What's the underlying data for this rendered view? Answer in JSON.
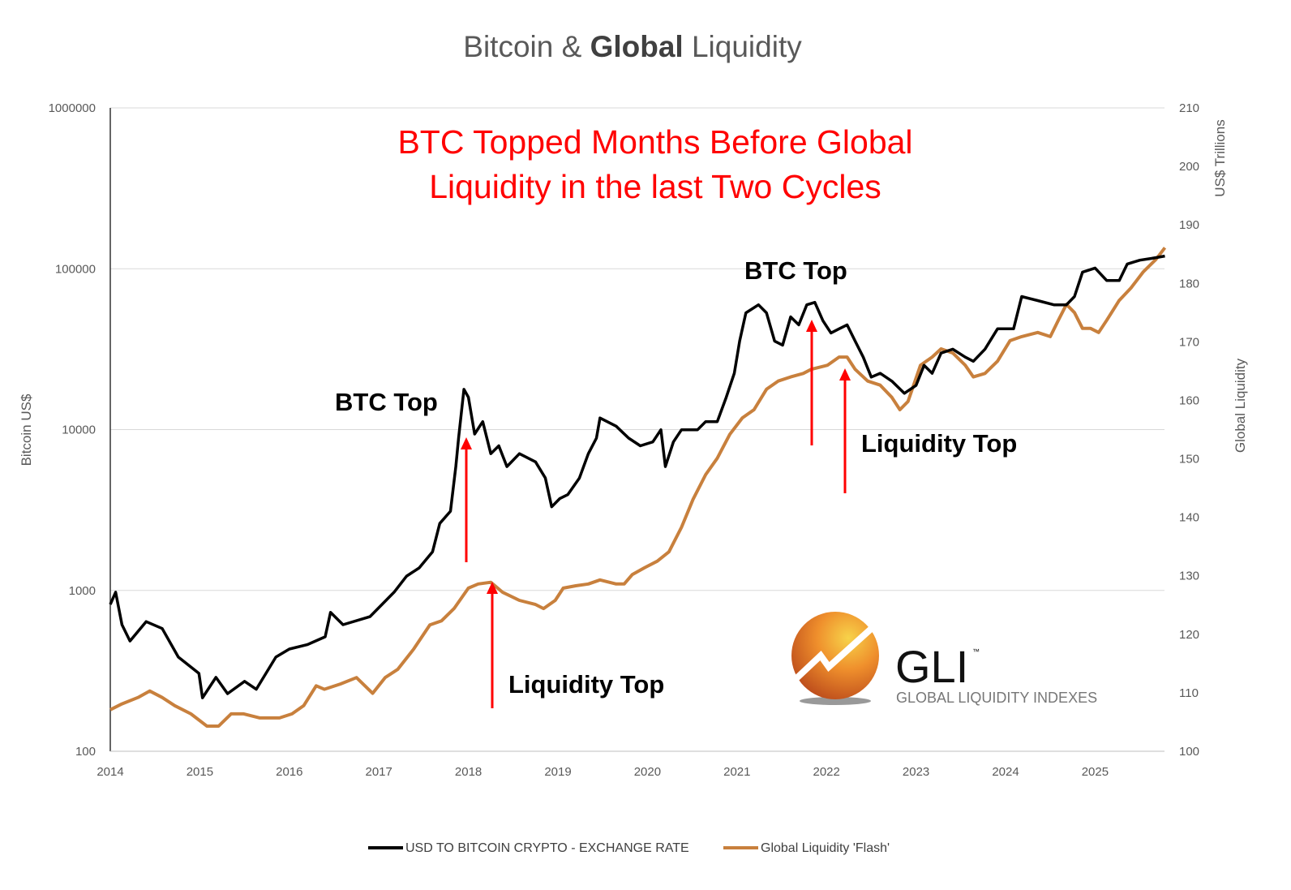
{
  "chart_data": {
    "type": "line",
    "title": {
      "prefix": "Bitcoin & ",
      "bold": "Global",
      "suffix": " Liquidity"
    },
    "headline": [
      "BTC Topped Months Before Global",
      "Liquidity in the last Two Cycles"
    ],
    "xlabel": "",
    "x_ticks": [
      "2014",
      "2015",
      "2016",
      "2017",
      "2018",
      "2019",
      "2020",
      "2021",
      "2022",
      "2023",
      "2024",
      "2025"
    ],
    "xlim": [
      2014,
      2025.8
    ],
    "y_left": {
      "label": "Bitcoin US$",
      "scale": "log",
      "range": [
        100,
        1000000
      ],
      "ticks": [
        "100",
        "1000",
        "10000",
        "100000",
        "1000000"
      ]
    },
    "y_right": {
      "label": "Global Liquidity",
      "unit_label": "US$ Trillions",
      "scale": "linear",
      "range": [
        100,
        210
      ],
      "ticks": [
        "100",
        "110",
        "120",
        "130",
        "140",
        "150",
        "160",
        "170",
        "180",
        "190",
        "200",
        "210"
      ]
    },
    "grid": true,
    "legend_position": "bottom",
    "series": [
      {
        "name": "USD TO BITCOIN CRYPTO - EXCHANGE RATE",
        "axis": "left",
        "color": "#000000",
        "points": [
          [
            2014.0,
            818
          ],
          [
            2014.06,
            975
          ],
          [
            2014.13,
            612
          ],
          [
            2014.22,
            485
          ],
          [
            2014.4,
            640
          ],
          [
            2014.58,
            580
          ],
          [
            2014.76,
            385
          ],
          [
            2014.99,
            305
          ],
          [
            2015.03,
            215
          ],
          [
            2015.18,
            288
          ],
          [
            2015.31,
            228
          ],
          [
            2015.5,
            272
          ],
          [
            2015.63,
            243
          ],
          [
            2015.85,
            385
          ],
          [
            2016.0,
            432
          ],
          [
            2016.2,
            460
          ],
          [
            2016.4,
            515
          ],
          [
            2016.46,
            730
          ],
          [
            2016.6,
            612
          ],
          [
            2016.9,
            687
          ],
          [
            2017.17,
            975
          ],
          [
            2017.31,
            1228
          ],
          [
            2017.45,
            1380
          ],
          [
            2017.6,
            1740
          ],
          [
            2017.68,
            2610
          ],
          [
            2017.8,
            3110
          ],
          [
            2017.86,
            5890
          ],
          [
            2017.89,
            8850
          ],
          [
            2017.95,
            17800
          ],
          [
            2018.0,
            15900
          ],
          [
            2018.07,
            9380
          ],
          [
            2018.16,
            11200
          ],
          [
            2018.25,
            7080
          ],
          [
            2018.34,
            7930
          ],
          [
            2018.43,
            5890
          ],
          [
            2018.57,
            7080
          ],
          [
            2018.75,
            6300
          ],
          [
            2018.86,
            5000
          ],
          [
            2018.93,
            3310
          ],
          [
            2019.02,
            3720
          ],
          [
            2019.11,
            3940
          ],
          [
            2019.24,
            5000
          ],
          [
            2019.34,
            7080
          ],
          [
            2019.43,
            8850
          ],
          [
            2019.47,
            11800
          ],
          [
            2019.65,
            10500
          ],
          [
            2019.79,
            8850
          ],
          [
            2019.92,
            7930
          ],
          [
            2020.06,
            8380
          ],
          [
            2020.15,
            9980
          ],
          [
            2020.2,
            5890
          ],
          [
            2020.29,
            8380
          ],
          [
            2020.38,
            9980
          ],
          [
            2020.56,
            9980
          ],
          [
            2020.65,
            11200
          ],
          [
            2020.78,
            11200
          ],
          [
            2020.88,
            15900
          ],
          [
            2020.97,
            22400
          ],
          [
            2021.03,
            35500
          ],
          [
            2021.1,
            53200
          ],
          [
            2021.24,
            59700
          ],
          [
            2021.33,
            53200
          ],
          [
            2021.42,
            35500
          ],
          [
            2021.51,
            33500
          ],
          [
            2021.6,
            50200
          ],
          [
            2021.69,
            44800
          ],
          [
            2021.78,
            59700
          ],
          [
            2021.87,
            61800
          ],
          [
            2021.96,
            47500
          ],
          [
            2022.05,
            39900
          ],
          [
            2022.14,
            42300
          ],
          [
            2022.23,
            44800
          ],
          [
            2022.32,
            35500
          ],
          [
            2022.41,
            28200
          ],
          [
            2022.5,
            21200
          ],
          [
            2022.6,
            22400
          ],
          [
            2022.73,
            20000
          ],
          [
            2022.87,
            16800
          ],
          [
            2023.0,
            18800
          ],
          [
            2023.09,
            25100
          ],
          [
            2023.18,
            22400
          ],
          [
            2023.28,
            29900
          ],
          [
            2023.41,
            31600
          ],
          [
            2023.55,
            28200
          ],
          [
            2023.64,
            26600
          ],
          [
            2023.77,
            31600
          ],
          [
            2023.91,
            42300
          ],
          [
            2024.09,
            42300
          ],
          [
            2024.18,
            67200
          ],
          [
            2024.36,
            63400
          ],
          [
            2024.54,
            59700
          ],
          [
            2024.68,
            59700
          ],
          [
            2024.77,
            67200
          ],
          [
            2024.86,
            95300
          ],
          [
            2025.0,
            101000
          ],
          [
            2025.13,
            84500
          ],
          [
            2025.27,
            84500
          ],
          [
            2025.36,
            107000
          ],
          [
            2025.5,
            113000
          ],
          [
            2025.63,
            116000
          ],
          [
            2025.78,
            120000
          ]
        ]
      },
      {
        "name": "Global Liquidity 'Flash'",
        "axis": "right",
        "color": "#c8803d",
        "points": [
          [
            2014.0,
            107.1
          ],
          [
            2014.13,
            108.1
          ],
          [
            2014.31,
            109.2
          ],
          [
            2014.44,
            110.3
          ],
          [
            2014.58,
            109.2
          ],
          [
            2014.72,
            107.8
          ],
          [
            2014.9,
            106.4
          ],
          [
            2015.08,
            104.3
          ],
          [
            2015.21,
            104.3
          ],
          [
            2015.35,
            106.4
          ],
          [
            2015.49,
            106.4
          ],
          [
            2015.67,
            105.7
          ],
          [
            2015.89,
            105.7
          ],
          [
            2016.03,
            106.4
          ],
          [
            2016.16,
            107.8
          ],
          [
            2016.3,
            111.2
          ],
          [
            2016.39,
            110.6
          ],
          [
            2016.57,
            111.5
          ],
          [
            2016.75,
            112.6
          ],
          [
            2016.93,
            109.9
          ],
          [
            2017.07,
            112.6
          ],
          [
            2017.21,
            114.0
          ],
          [
            2017.39,
            117.5
          ],
          [
            2017.57,
            121.6
          ],
          [
            2017.7,
            122.3
          ],
          [
            2017.84,
            124.4
          ],
          [
            2018.0,
            127.9
          ],
          [
            2018.11,
            128.6
          ],
          [
            2018.25,
            128.9
          ],
          [
            2018.38,
            127.2
          ],
          [
            2018.57,
            125.8
          ],
          [
            2018.75,
            125.1
          ],
          [
            2018.84,
            124.4
          ],
          [
            2018.97,
            125.8
          ],
          [
            2019.06,
            127.9
          ],
          [
            2019.2,
            128.3
          ],
          [
            2019.34,
            128.6
          ],
          [
            2019.47,
            129.3
          ],
          [
            2019.65,
            128.6
          ],
          [
            2019.74,
            128.6
          ],
          [
            2019.83,
            130.2
          ],
          [
            2019.97,
            131.4
          ],
          [
            2020.11,
            132.5
          ],
          [
            2020.24,
            134.1
          ],
          [
            2020.38,
            138.3
          ],
          [
            2020.51,
            143.1
          ],
          [
            2020.65,
            147.3
          ],
          [
            2020.78,
            150.1
          ],
          [
            2020.92,
            154.2
          ],
          [
            2021.06,
            157.0
          ],
          [
            2021.19,
            158.4
          ],
          [
            2021.33,
            161.9
          ],
          [
            2021.46,
            163.3
          ],
          [
            2021.6,
            164.0
          ],
          [
            2021.74,
            164.6
          ],
          [
            2021.83,
            165.3
          ],
          [
            2022.01,
            166.0
          ],
          [
            2022.14,
            167.4
          ],
          [
            2022.23,
            167.4
          ],
          [
            2022.32,
            165.3
          ],
          [
            2022.46,
            163.3
          ],
          [
            2022.6,
            162.6
          ],
          [
            2022.73,
            160.5
          ],
          [
            2022.82,
            158.4
          ],
          [
            2022.91,
            159.8
          ],
          [
            2023.05,
            166.0
          ],
          [
            2023.18,
            167.4
          ],
          [
            2023.28,
            168.8
          ],
          [
            2023.41,
            168.1
          ],
          [
            2023.55,
            166.0
          ],
          [
            2023.64,
            164.0
          ],
          [
            2023.77,
            164.6
          ],
          [
            2023.91,
            166.7
          ],
          [
            2024.05,
            170.2
          ],
          [
            2024.18,
            170.9
          ],
          [
            2024.36,
            171.6
          ],
          [
            2024.5,
            170.9
          ],
          [
            2024.59,
            173.7
          ],
          [
            2024.68,
            176.4
          ],
          [
            2024.77,
            175.0
          ],
          [
            2024.86,
            172.3
          ],
          [
            2024.95,
            172.3
          ],
          [
            2025.04,
            171.6
          ],
          [
            2025.13,
            173.7
          ],
          [
            2025.27,
            177.1
          ],
          [
            2025.4,
            179.2
          ],
          [
            2025.54,
            182.0
          ],
          [
            2025.68,
            184.1
          ],
          [
            2025.78,
            186.1
          ]
        ]
      }
    ],
    "annotations": [
      {
        "text": "BTC Top",
        "cycle": "2017"
      },
      {
        "text": "Liquidity Top",
        "cycle": "2018"
      },
      {
        "text": "BTC Top",
        "cycle": "2021"
      },
      {
        "text": "Liquidity Top",
        "cycle": "2022"
      }
    ],
    "annotation_color": "#ff0000"
  },
  "logo": {
    "mark": "GLI",
    "tm": "™",
    "subtitle": "GLOBAL LIQUIDITY INDEXES"
  }
}
